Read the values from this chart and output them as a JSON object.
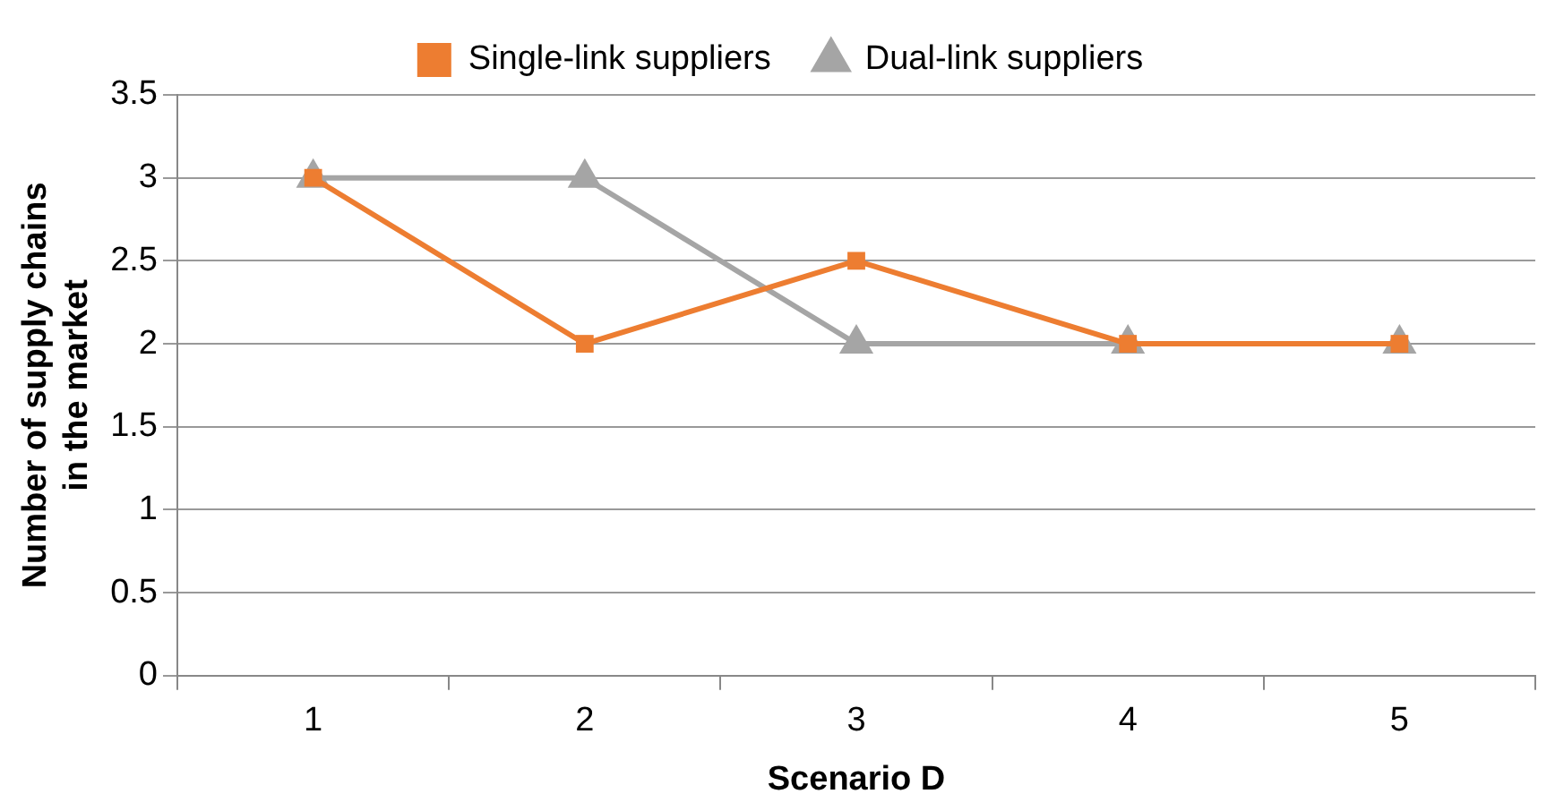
{
  "chart_data": {
    "type": "line",
    "xlabel": "Scenario D",
    "ylabel": "Number of supply chains\nin the market",
    "categories": [
      "1",
      "2",
      "3",
      "4",
      "5"
    ],
    "series": [
      {
        "name": "Single-link suppliers",
        "color": "#ed7d31",
        "marker": "square",
        "values": [
          3,
          2,
          2.5,
          2,
          2
        ]
      },
      {
        "name": "Dual-link suppliers",
        "color": "#a5a5a5",
        "marker": "triangle",
        "values": [
          3,
          3,
          2,
          2,
          2
        ]
      }
    ],
    "ylim": [
      0,
      3.5
    ],
    "yticks": [
      0,
      0.5,
      1,
      1.5,
      2,
      2.5,
      3,
      3.5
    ],
    "grid": "y",
    "legend": "top",
    "line_style": "solid"
  }
}
